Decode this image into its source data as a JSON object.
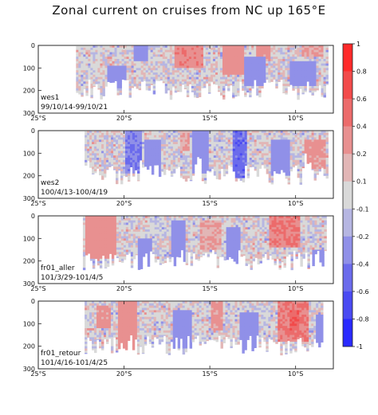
{
  "chart_data": {
    "type": "heatmap",
    "title": "Zonal current on cruises from NC up 165°E",
    "xlabel": "",
    "ylabel": "",
    "x_ticks": [
      "25°S",
      "20°S",
      "15°S",
      "10°S"
    ],
    "x_tick_values": [
      -25,
      -20,
      -15,
      -10
    ],
    "xlim": [
      -25,
      -7.8
    ],
    "y_ticks": [
      "0",
      "100",
      "200",
      "300"
    ],
    "y_tick_values": [
      0,
      100,
      200,
      300
    ],
    "ylim": [
      300,
      0
    ],
    "colorbar": {
      "ticks": [
        "1",
        "0.8",
        "0.6",
        "0.4",
        "0.2",
        "0.1",
        "-0.1",
        "-0.2",
        "-0.4",
        "-0.6",
        "-0.8",
        "-1"
      ],
      "bins": [
        {
          "low": 0.8,
          "high": 1.0,
          "color": "#ff2a2a"
        },
        {
          "low": 0.6,
          "high": 0.8,
          "color": "#f24a4a"
        },
        {
          "low": 0.4,
          "high": 0.6,
          "color": "#ec6b6b"
        },
        {
          "low": 0.2,
          "high": 0.4,
          "color": "#e89090"
        },
        {
          "low": 0.1,
          "high": 0.2,
          "color": "#e2b6b6"
        },
        {
          "low": -0.1,
          "high": 0.1,
          "color": "#d9d9d9"
        },
        {
          "low": -0.2,
          "high": -0.1,
          "color": "#b6b6e2"
        },
        {
          "low": -0.4,
          "high": -0.2,
          "color": "#9090e8"
        },
        {
          "low": -0.6,
          "high": -0.4,
          "color": "#6b6bec"
        },
        {
          "low": -0.8,
          "high": -0.6,
          "color": "#4a4af2"
        },
        {
          "low": -1.0,
          "high": -0.8,
          "color": "#2a2aff"
        }
      ]
    },
    "panels": [
      {
        "name": "wes1",
        "dates": "99/10/14-99/10/21",
        "lat_range": [
          -22.8,
          -8.1
        ],
        "features": [
          {
            "lat": [
              -17.0,
              -15.4
            ],
            "depth": [
              0,
              90
            ],
            "value": 0.35
          },
          {
            "lat": [
              -14.2,
              -13.0
            ],
            "depth": [
              0,
              120
            ],
            "value": 0.3
          },
          {
            "lat": [
              -12.3,
              -11.5
            ],
            "depth": [
              0,
              60
            ],
            "value": 0.25
          },
          {
            "lat": [
              -19.4,
              -18.6
            ],
            "depth": [
              0,
              60
            ],
            "value": -0.3
          },
          {
            "lat": [
              -21.0,
              -19.8
            ],
            "depth": [
              90,
              180
            ],
            "value": -0.3
          },
          {
            "lat": [
              -13.0,
              -11.7
            ],
            "depth": [
              50,
              170
            ],
            "value": -0.3
          },
          {
            "lat": [
              -10.4,
              -8.8
            ],
            "depth": [
              70,
              170
            ],
            "value": -0.3
          },
          {
            "lat": [
              -9.6,
              -8.4
            ],
            "depth": [
              0,
              40
            ],
            "value": 0.2
          }
        ]
      },
      {
        "name": "wes2",
        "dates": "100/4/13-100/4/19",
        "lat_range": [
          -22.3,
          -8.1
        ],
        "features": [
          {
            "lat": [
              -20.0,
              -18.9
            ],
            "depth": [
              0,
              180
            ],
            "value": -0.4
          },
          {
            "lat": [
              -18.8,
              -17.8
            ],
            "depth": [
              40,
              200
            ],
            "value": -0.3
          },
          {
            "lat": [
              -16.0,
              -15.0
            ],
            "depth": [
              0,
              180
            ],
            "value": -0.3
          },
          {
            "lat": [
              -13.6,
              -12.8
            ],
            "depth": [
              0,
              200
            ],
            "value": -0.5
          },
          {
            "lat": [
              -11.4,
              -10.3
            ],
            "depth": [
              40,
              190
            ],
            "value": -0.3
          },
          {
            "lat": [
              -16.8,
              -16.2
            ],
            "depth": [
              0,
              80
            ],
            "value": 0.2
          },
          {
            "lat": [
              -9.5,
              -8.2
            ],
            "depth": [
              40,
              160
            ],
            "value": 0.25
          }
        ]
      },
      {
        "name": "fr01_aller",
        "dates": "101/3/29-101/4/5",
        "lat_range": [
          -22.4,
          -8.2
        ],
        "features": [
          {
            "lat": [
              -22.2,
              -20.5
            ],
            "depth": [
              0,
              180
            ],
            "value": 0.3
          },
          {
            "lat": [
              -19.2,
              -18.3
            ],
            "depth": [
              100,
              250
            ],
            "value": -0.3
          },
          {
            "lat": [
              -17.2,
              -16.4
            ],
            "depth": [
              20,
              230
            ],
            "value": -0.3
          },
          {
            "lat": [
              -15.6,
              -14.3
            ],
            "depth": [
              20,
              140
            ],
            "value": 0.2
          },
          {
            "lat": [
              -14.0,
              -13.2
            ],
            "depth": [
              50,
              230
            ],
            "value": -0.3
          },
          {
            "lat": [
              -11.6,
              -9.7
            ],
            "depth": [
              0,
              130
            ],
            "value": 0.4
          },
          {
            "lat": [
              -9.0,
              -8.3
            ],
            "depth": [
              150,
              240
            ],
            "value": -0.3
          }
        ]
      },
      {
        "name": "fr01_retour",
        "dates": "101/4/16-101/4/25",
        "lat_range": [
          -22.3,
          -8.4
        ],
        "features": [
          {
            "lat": [
              -21.6,
              -20.8
            ],
            "depth": [
              20,
              110
            ],
            "value": 0.25
          },
          {
            "lat": [
              -20.4,
              -19.2
            ],
            "depth": [
              0,
              230
            ],
            "value": 0.3
          },
          {
            "lat": [
              -17.2,
              -16.0
            ],
            "depth": [
              40,
              200
            ],
            "value": -0.3
          },
          {
            "lat": [
              -15.0,
              -14.2
            ],
            "depth": [
              0,
              120
            ],
            "value": 0.25
          },
          {
            "lat": [
              -13.2,
              -12.2
            ],
            "depth": [
              50,
              220
            ],
            "value": -0.3
          },
          {
            "lat": [
              -11.0,
              -9.3
            ],
            "depth": [
              0,
              170
            ],
            "value": 0.4
          },
          {
            "lat": [
              -10.4,
              -9.8
            ],
            "depth": [
              40,
              120
            ],
            "value": 0.6
          },
          {
            "lat": [
              -8.8,
              -8.4
            ],
            "depth": [
              60,
              200
            ],
            "value": -0.3
          }
        ]
      }
    ]
  }
}
